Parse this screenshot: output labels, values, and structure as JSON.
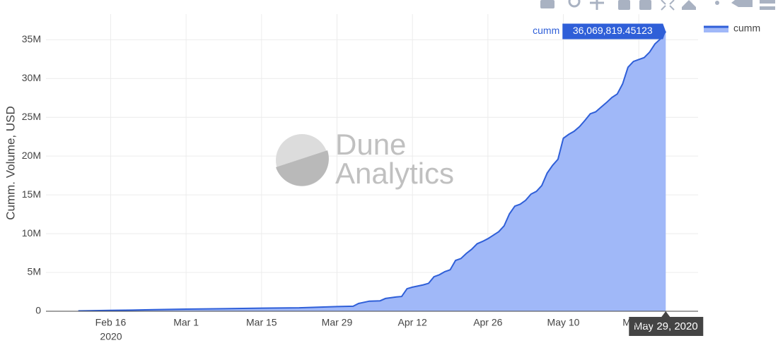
{
  "chart_data": {
    "type": "area",
    "y_axis_label": "Cumm. Volume, USD",
    "watermark": [
      "Dune",
      "Analytics"
    ],
    "x_year_label": "2020",
    "xlim": [
      "2020-02-04",
      "2020-06-04"
    ],
    "xticks": [
      {
        "value": "2020-02-16",
        "label": "Feb 16"
      },
      {
        "value": "2020-03-01",
        "label": "Mar 1"
      },
      {
        "value": "2020-03-15",
        "label": "Mar 15"
      },
      {
        "value": "2020-03-29",
        "label": "Mar 29"
      },
      {
        "value": "2020-04-12",
        "label": "Apr 12"
      },
      {
        "value": "2020-04-26",
        "label": "Apr 26"
      },
      {
        "value": "2020-05-10",
        "label": "May 10"
      },
      {
        "value": "2020-05-24",
        "label": "May 24"
      }
    ],
    "ylim": [
      0,
      38300000
    ],
    "yticks": [
      0,
      {
        "value": 5000000,
        "label": "5M"
      },
      {
        "value": 10000000,
        "label": "10M"
      },
      {
        "value": 15000000,
        "label": "15M"
      },
      {
        "value": 20000000,
        "label": "20M"
      },
      {
        "value": 25000000,
        "label": "25M"
      },
      {
        "value": 30000000,
        "label": "30M"
      },
      {
        "value": 35000000,
        "label": "35M"
      }
    ],
    "grid": true,
    "legend": "top-right",
    "x": [
      "2020-02-10",
      "2020-02-13",
      "2020-02-16",
      "2020-02-20",
      "2020-02-24",
      "2020-03-01",
      "2020-03-08",
      "2020-03-15",
      "2020-03-22",
      "2020-03-29",
      "2020-04-01",
      "2020-04-02",
      "2020-04-04",
      "2020-04-06",
      "2020-04-07",
      "2020-04-09",
      "2020-04-10",
      "2020-04-11",
      "2020-04-12",
      "2020-04-14",
      "2020-04-15",
      "2020-04-16",
      "2020-04-17",
      "2020-04-18",
      "2020-04-19",
      "2020-04-20",
      "2020-04-21",
      "2020-04-22",
      "2020-04-23",
      "2020-04-24",
      "2020-04-25",
      "2020-04-26",
      "2020-04-27",
      "2020-04-28",
      "2020-04-29",
      "2020-04-30",
      "2020-05-01",
      "2020-05-02",
      "2020-05-03",
      "2020-05-04",
      "2020-05-05",
      "2020-05-06",
      "2020-05-07",
      "2020-05-08",
      "2020-05-09",
      "2020-05-10",
      "2020-05-11",
      "2020-05-12",
      "2020-05-13",
      "2020-05-14",
      "2020-05-15",
      "2020-05-16",
      "2020-05-17",
      "2020-05-18",
      "2020-05-19",
      "2020-05-20",
      "2020-05-21",
      "2020-05-22",
      "2020-05-23",
      "2020-05-24",
      "2020-05-25",
      "2020-05-26",
      "2020-05-27",
      "2020-05-28",
      "2020-05-29"
    ],
    "series": [
      {
        "name": "cumm",
        "color": "#2f5fd8",
        "fill": "#a0b8f8",
        "values": [
          50000,
          80000,
          110000,
          150000,
          200000,
          270000,
          330000,
          400000,
          450000,
          600000,
          650000,
          1000000,
          1300000,
          1350000,
          1650000,
          1850000,
          1900000,
          2900000,
          3100000,
          3400000,
          3600000,
          4450000,
          4700000,
          5100000,
          5350000,
          6550000,
          6800000,
          7450000,
          8000000,
          8700000,
          9000000,
          9350000,
          9800000,
          10250000,
          11000000,
          12550000,
          13550000,
          13800000,
          14300000,
          15100000,
          15450000,
          16200000,
          17800000,
          18800000,
          19600000,
          22300000,
          22800000,
          23200000,
          23800000,
          24600000,
          25450000,
          25700000,
          26300000,
          26900000,
          27550000,
          28000000,
          29300000,
          31450000,
          32200000,
          32450000,
          32700000,
          33400000,
          34450000,
          35100000,
          36069819.45123
        ]
      }
    ],
    "hover_value_label": "36,069,819.45123",
    "hover_x_label": "May 29, 2020"
  }
}
